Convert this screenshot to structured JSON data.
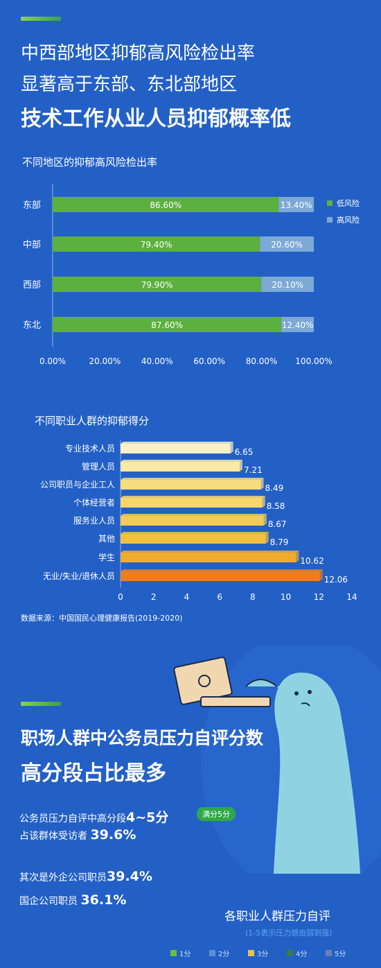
{
  "section1": {
    "headline_line1": "中西部地区抑郁高风险检出率",
    "headline_line2": "显著高于东部、东北部地区",
    "headline_line3": "技术工作从业人员抑郁概率低"
  },
  "section2": {
    "headline_line1": "职场人群中公务员压力自评分数",
    "headline_line2": "高分段占比最多",
    "p1_text": "公务员压力自评中高分段",
    "p1_value": "4~5分",
    "p1_badge": "满分5分",
    "p2_text": "占该群体受访者",
    "p2_value": "39.6%",
    "p3_text": "其次是外企公司职员",
    "p3_value": "39.4%",
    "p4_text": "国企公司职员",
    "p4_value": "36.1%",
    "chart3_title": "各职业人群压力自评",
    "chart3_subtitle": "(1-5表示压力感由弱到强)"
  },
  "colors": {
    "background": "#2360c6",
    "low_risk": "#5cb040",
    "high_risk": "#7ca9d6",
    "score_1": "#6bbf3d",
    "score_2": "#5c8fd0",
    "score_3": "#e8c24a",
    "score_4": "#3f7a3f",
    "score_5": "#6b7fb0"
  },
  "chart_data": [
    {
      "type": "bar",
      "orientation": "horizontal",
      "stacked": true,
      "title": "不同地区的抑郁高风险检出率",
      "categories": [
        "东部",
        "中部",
        "西部",
        "东北"
      ],
      "series": [
        {
          "name": "低风险",
          "values": [
            86.6,
            79.4,
            79.9,
            87.6
          ],
          "labels": [
            "86.60%",
            "79.40%",
            "79.90%",
            "87.60%"
          ]
        },
        {
          "name": "高风险",
          "values": [
            13.4,
            20.6,
            20.1,
            12.4
          ],
          "labels": [
            "13.40%",
            "20.60%",
            "20.10%",
            "12.40%"
          ]
        }
      ],
      "xlim": [
        0,
        100
      ],
      "xticks": [
        "0.00%",
        "20.00%",
        "40.00%",
        "60.00%",
        "80.00%",
        "100.00%"
      ],
      "legend_position": "right",
      "grid": false
    },
    {
      "type": "bar",
      "orientation": "horizontal",
      "title": "不同职业人群的抑郁得分",
      "categories": [
        "专业技术人员",
        "管理人员",
        "公司职员与企业工人",
        "个体经营者",
        "服务业人员",
        "其他",
        "学生",
        "无业/失业/退休人员"
      ],
      "values": [
        6.65,
        7.21,
        8.49,
        8.58,
        8.67,
        8.79,
        10.62,
        12.06
      ],
      "labels": [
        "6.65",
        "7.21",
        "8.49",
        "8.58",
        "8.67",
        "8.79",
        "10.62",
        "12.06"
      ],
      "bar_colors": [
        "#fbf1c8",
        "#fbeaa4",
        "#f8dc82",
        "#f6d56c",
        "#f4cc55",
        "#f2c23f",
        "#f0ab2e",
        "#ea7f22"
      ],
      "xlim": [
        0,
        14
      ],
      "xticks": [
        "0",
        "2",
        "4",
        "6",
        "8",
        "10",
        "12",
        "14"
      ],
      "source": "数据来源：中国国民心理健康报告(2019-2020)",
      "grid": false
    },
    {
      "type": "bar",
      "title": "各职业人群压力自评",
      "legend": [
        "1分",
        "2分",
        "3分",
        "4分",
        "5分"
      ],
      "legend_position": "bottom"
    }
  ]
}
